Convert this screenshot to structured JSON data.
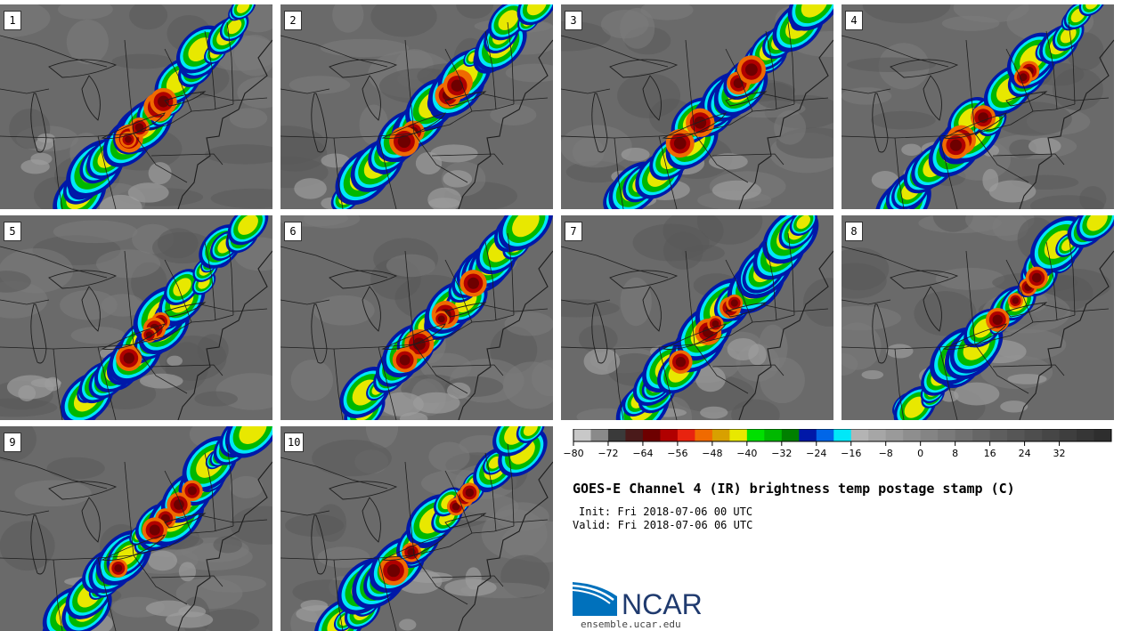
{
  "figure": {
    "title": "GOES-E Channel 4 (IR) brightness temp postage stamp (C)",
    "init": "Init: Fri 2018-07-06 00 UTC",
    "valid": "Valid: Fri 2018-07-06 06 UTC",
    "logo_text": "NCAR",
    "url": "ensemble.ucar.edu"
  },
  "members": [
    "1",
    "2",
    "3",
    "4",
    "5",
    "6",
    "7",
    "8",
    "9",
    "10"
  ],
  "colorbar": {
    "min": -80,
    "max": 44,
    "tick_labels": [
      "−80",
      "−72",
      "−64",
      "−56",
      "−48",
      "−40",
      "−32",
      "−24",
      "−16",
      "−8",
      "0",
      "8",
      "16",
      "24",
      "32"
    ],
    "tick_values": [
      -80,
      -72,
      -64,
      -56,
      -48,
      -40,
      -32,
      -24,
      -16,
      -8,
      0,
      8,
      16,
      24,
      32
    ],
    "colors": [
      "#c8c8c8",
      "#8a8a8a",
      "#3a3a3a",
      "#4a1a1a",
      "#6e0000",
      "#b00000",
      "#e8230f",
      "#f06a00",
      "#d8a000",
      "#e8e800",
      "#00e000",
      "#00b800",
      "#008000",
      "#0018a8",
      "#0066e8",
      "#00e8f8",
      "#b4b4b4",
      "#a6a6a6",
      "#9a9a9a",
      "#8e8e8e",
      "#848484",
      "#7a7a7a",
      "#707070",
      "#666666",
      "#5e5e5e",
      "#565656",
      "#4e4e4e",
      "#464646",
      "#3e3e3e",
      "#363636",
      "#2e2e2e"
    ]
  },
  "colors": {
    "land": "#6a6a6a",
    "cold_cloud": "#e8e8e8",
    "border": "#1e1e1e",
    "logo_blue": "#0071bc",
    "logo_navy": "#1f3a6e"
  }
}
